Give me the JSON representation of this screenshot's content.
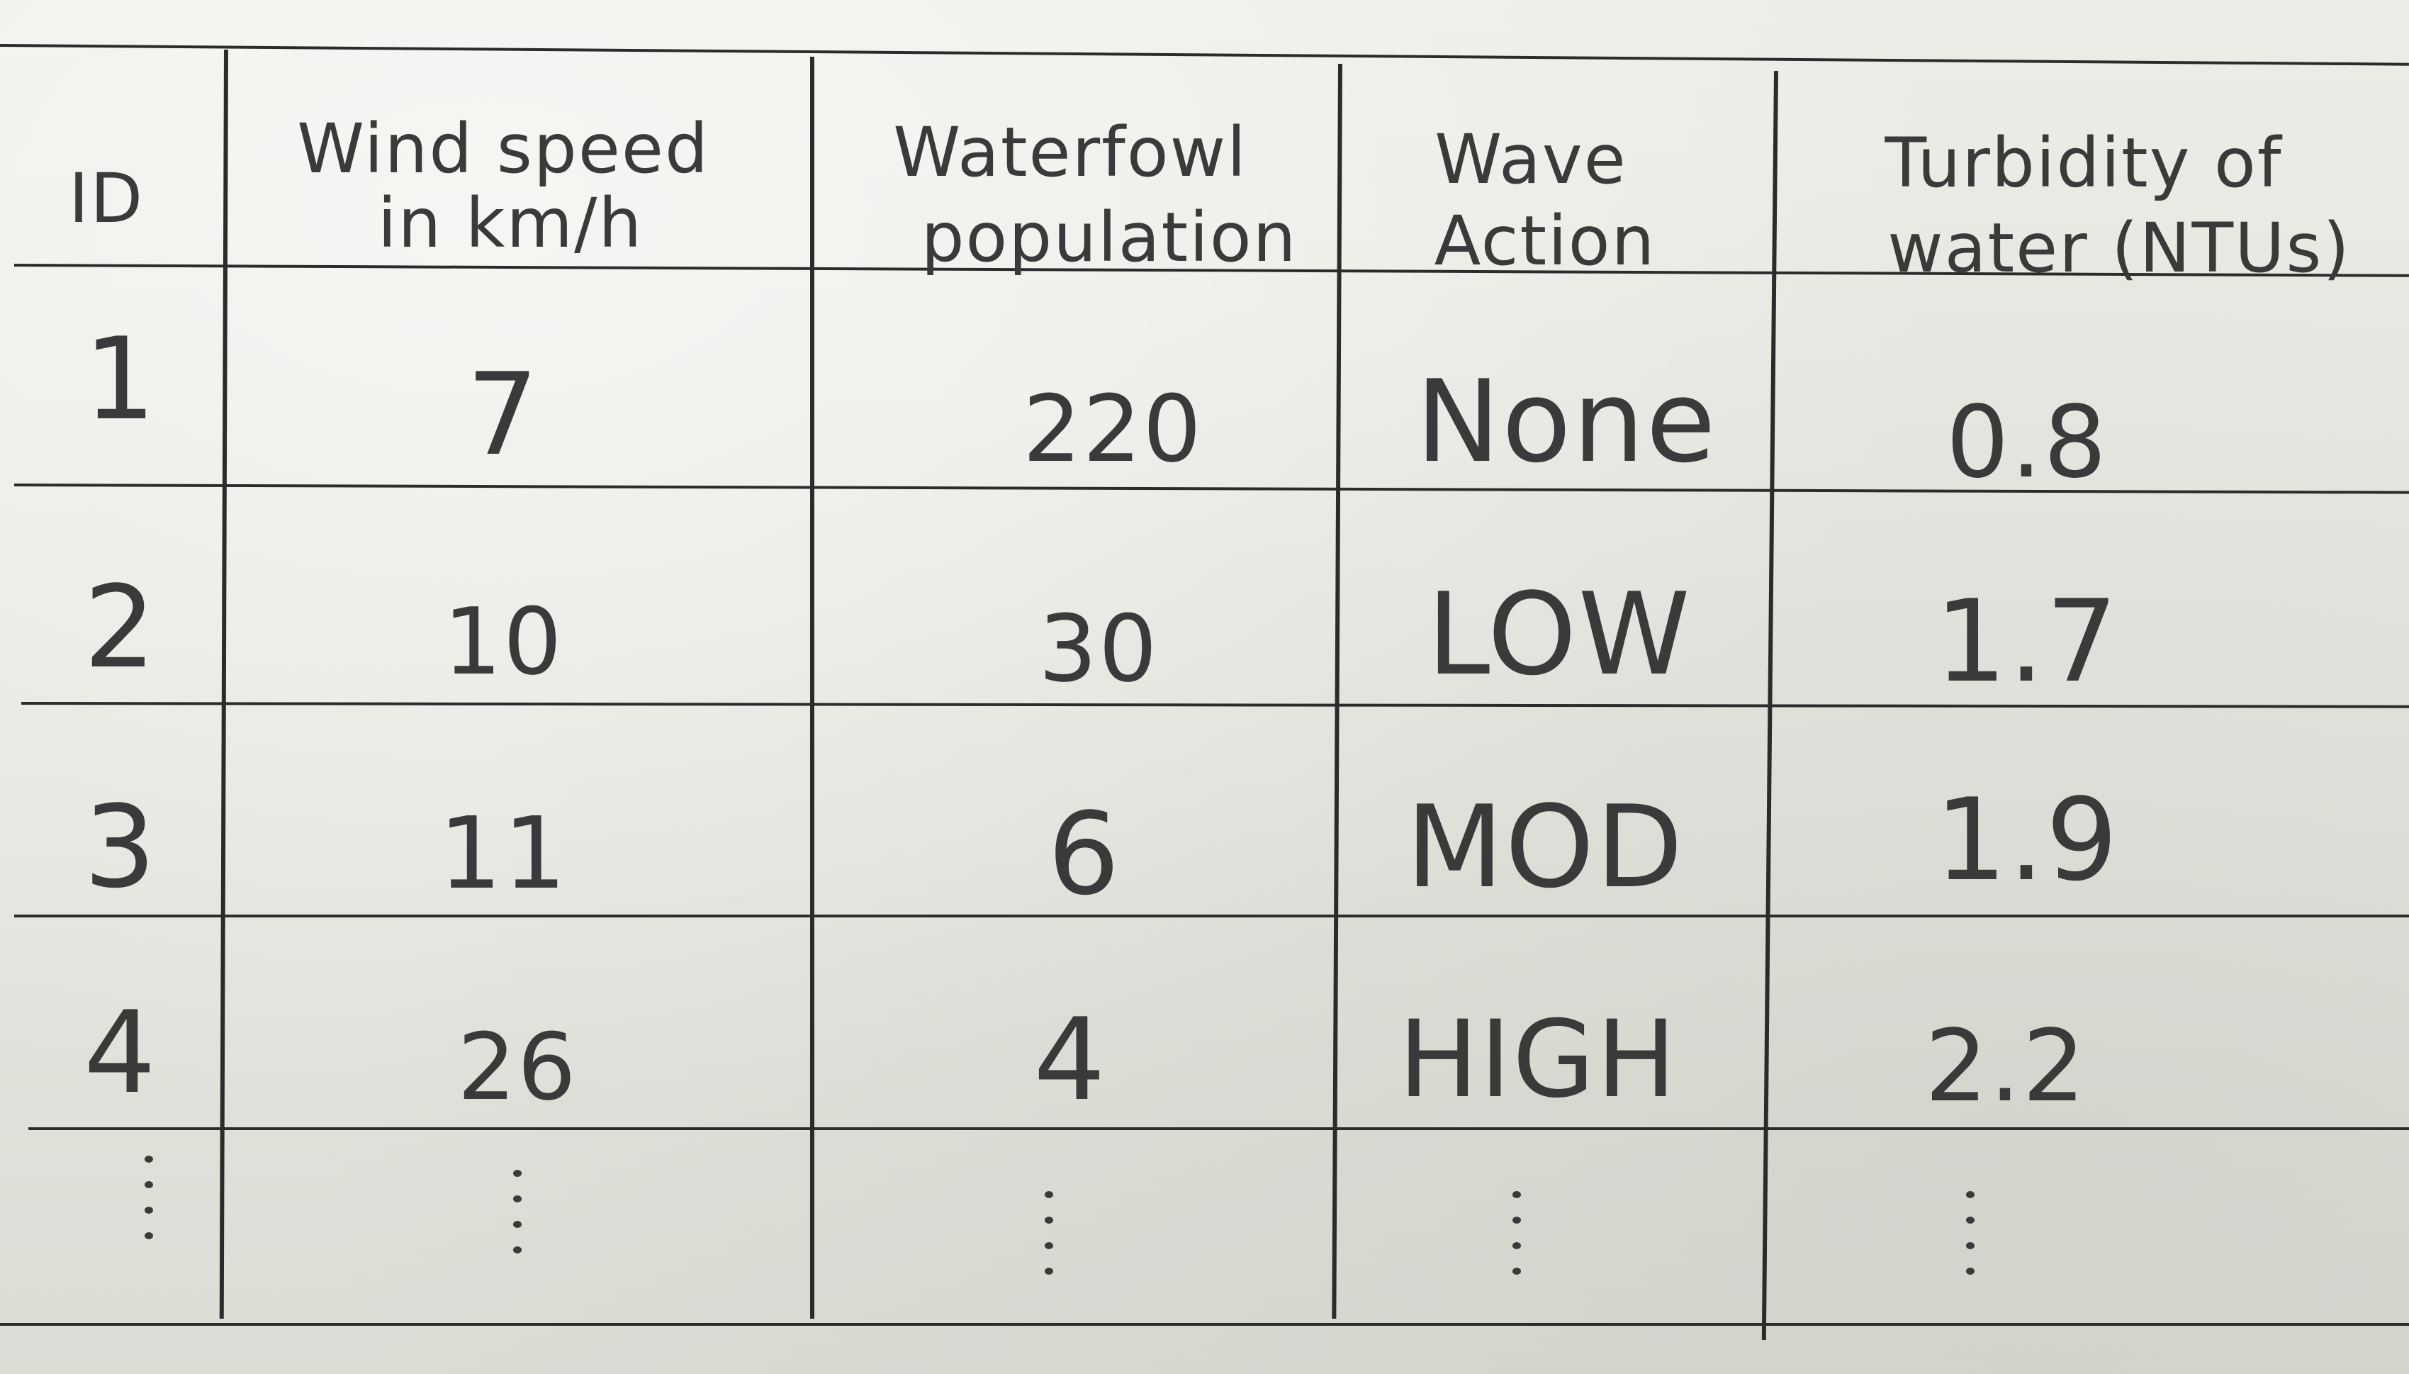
{
  "table": {
    "headers": {
      "id": "ID",
      "wind_line1": "Wind speed",
      "wind_line2": "in km/h",
      "waterfowl_line1": "Waterfowl",
      "waterfowl_line2": "population",
      "wave_line1": "Wave",
      "wave_line2": "Action",
      "turbidity_line1": "Turbidity of",
      "turbidity_line2": "water (NTUs)"
    },
    "rows": [
      {
        "id": "1",
        "wind": "7",
        "waterfowl": "220",
        "wave": "None",
        "turbidity": "0.8"
      },
      {
        "id": "2",
        "wind": "10",
        "waterfowl": "30",
        "wave": "LOW",
        "turbidity": "1.7"
      },
      {
        "id": "3",
        "wind": "11",
        "waterfowl": "6",
        "wave": "MOD",
        "turbidity": "1.9"
      },
      {
        "id": "4",
        "wind": "26",
        "waterfowl": "4",
        "wave": "HIGH",
        "turbidity": "2.2"
      }
    ]
  }
}
